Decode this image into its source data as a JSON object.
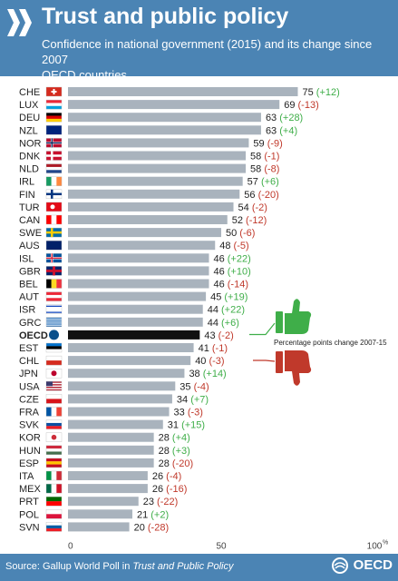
{
  "header": {
    "title": "Trust and public policy",
    "subtitle_line1": "Confidence in national government (2015) and its change since 2007",
    "subtitle_line2": "OECD countries"
  },
  "legend": {
    "note": "Percentage points change 2007-15"
  },
  "footer": {
    "source_prefix": "Source: Gallup World Poll in ",
    "source_title": "Trust and Public Policy",
    "brand": "OECD"
  },
  "colors": {
    "header_bg": "#4b84b4",
    "bar": "#a9b3bd",
    "oecd_bar": "#111111",
    "positive": "#3fae49",
    "negative": "#c0392b"
  },
  "chart_data": {
    "type": "bar",
    "orientation": "horizontal",
    "title": "Trust and public policy",
    "subtitle": "Confidence in national government (2015) and its change since 2007",
    "xlim": [
      0,
      100
    ],
    "x_ticks": [
      "0",
      "50",
      "100"
    ],
    "x_unit": "%",
    "grid": false,
    "categories": [
      "CHE",
      "LUX",
      "DEU",
      "NZL",
      "NOR",
      "DNK",
      "NLD",
      "IRL",
      "FIN",
      "TUR",
      "CAN",
      "SWE",
      "AUS",
      "ISL",
      "GBR",
      "BEL",
      "AUT",
      "ISR",
      "GRC",
      "OECD",
      "EST",
      "CHL",
      "JPN",
      "USA",
      "CZE",
      "FRA",
      "SVK",
      "KOR",
      "HUN",
      "ESP",
      "ITA",
      "MEX",
      "PRT",
      "POL",
      "SVN"
    ],
    "values": [
      75,
      69,
      63,
      63,
      59,
      58,
      58,
      57,
      56,
      54,
      52,
      50,
      48,
      46,
      46,
      46,
      45,
      44,
      44,
      43,
      41,
      40,
      38,
      35,
      34,
      33,
      31,
      28,
      28,
      28,
      26,
      26,
      23,
      21,
      20
    ],
    "change_labels": [
      "(+12)",
      "(-13)",
      "(+28)",
      "(+4)",
      "(-9)",
      "(-1)",
      "(-8)",
      "(+6)",
      "(-20)",
      "(-2)",
      "(-12)",
      "(-6)",
      "(-5)",
      "(+22)",
      "(+10)",
      "(-14)",
      "(+19)",
      "(+22)",
      "(+6)",
      "(-2)",
      "(-1)",
      "(-3)",
      "(+14)",
      "(-4)",
      "(+7)",
      "(-3)",
      "(+15)",
      "(+4)",
      "(+3)",
      "(-20)",
      "(-4)",
      "(-16)",
      "(-22)",
      "(+2)",
      "(-28)"
    ],
    "highlight": "OECD"
  }
}
